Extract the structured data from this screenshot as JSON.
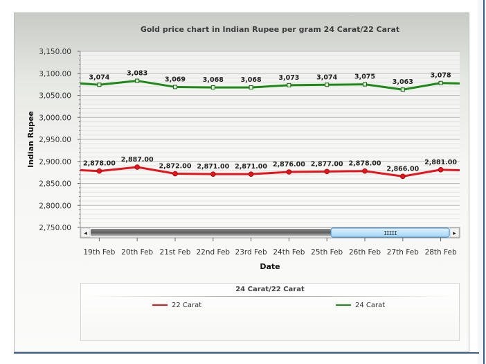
{
  "chart_data": {
    "type": "line",
    "title": "Gold price chart in Indian Rupee per gram 24 Carat/22 Carat",
    "xlabel": "Date",
    "ylabel": "Indian Rupee",
    "categories": [
      "19th Feb",
      "20th Feb",
      "21st Feb",
      "22nd Feb",
      "23rd Feb",
      "24th Feb",
      "25th Feb",
      "26th Feb",
      "27th Feb",
      "28th Feb"
    ],
    "y_ticks": [
      "2,750.00",
      "2,800.00",
      "2,850.00",
      "2,900.00",
      "2,950.00",
      "3,000.00",
      "3,050.00",
      "3,100.00",
      "3,150.00"
    ],
    "ylim": [
      2750,
      3150
    ],
    "grid": true,
    "legend_position": "bottom",
    "legend_title": "24 Carat/22 Carat",
    "series": [
      {
        "name": "22 Carat",
        "color": "#e8141b",
        "values": [
          2878,
          2887,
          2872,
          2871,
          2871,
          2876,
          2877,
          2878,
          2866,
          2881
        ],
        "labels": [
          "2,878.00",
          "2,887.00",
          "2,872.00",
          "2,871.00",
          "2,871.00",
          "2,876.00",
          "2,877.00",
          "2,878.00",
          "2,866.00",
          "2,881.00"
        ],
        "edge_in": 2880,
        "edge_out": 2880
      },
      {
        "name": "24 Carat",
        "color": "#1d8a17",
        "values": [
          3074,
          3083,
          3069,
          3068,
          3068,
          3073,
          3074,
          3075,
          3063,
          3078
        ],
        "labels": [
          "3,074",
          "3,083",
          "3,069",
          "3,068",
          "3,068",
          "3,073",
          "3,074",
          "3,075",
          "3,063",
          "3,078"
        ],
        "edge_in": 3077,
        "edge_out": 3077
      }
    ]
  },
  "scrollbar": {
    "left_arrow": "◂",
    "right_arrow": "▸",
    "thumb_grip": "IIIII",
    "thumb_start": 0.67,
    "thumb_end": 1.0
  }
}
